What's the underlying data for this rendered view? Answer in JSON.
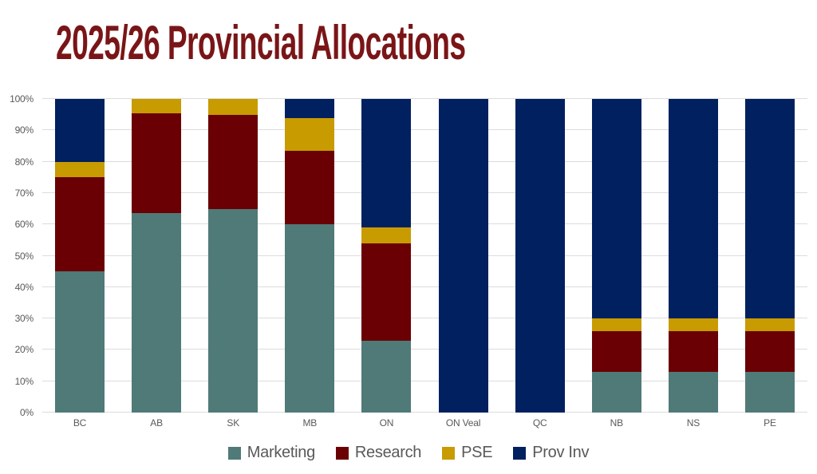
{
  "title": "2025/26 Provincial Allocations",
  "colors": {
    "title": "#7A1517",
    "axis_text": "#595959",
    "gridline": "#DCDCDC",
    "background": "#FFFFFF",
    "marketing": "#4F7A78",
    "research": "#6A0003",
    "pse": "#C89B00",
    "prov_inv": "#002060"
  },
  "chart_data": {
    "type": "bar",
    "stacked": true,
    "title": "2025/26 Provincial Allocations",
    "xlabel": "",
    "ylabel": "",
    "ylim": [
      0,
      100
    ],
    "grid": true,
    "legend_position": "bottom",
    "y_tick_labels": [
      "0%",
      "10%",
      "20%",
      "30%",
      "40%",
      "50%",
      "60%",
      "70%",
      "80%",
      "90%",
      "100%"
    ],
    "categories": [
      "BC",
      "AB",
      "SK",
      "MB",
      "ON",
      "ON Veal",
      "QC",
      "NB",
      "NS",
      "PE"
    ],
    "series": [
      {
        "name": "Marketing",
        "color": "#4F7A78",
        "values": [
          45,
          63.5,
          65,
          60,
          23,
          0,
          0,
          13,
          13,
          13
        ]
      },
      {
        "name": "Research",
        "color": "#6A0003",
        "values": [
          30,
          32,
          30,
          23.5,
          31,
          0,
          0,
          13,
          13,
          13
        ]
      },
      {
        "name": "PSE",
        "color": "#C89B00",
        "values": [
          5,
          4.5,
          5,
          10.5,
          5,
          0,
          0,
          4,
          4,
          4
        ]
      },
      {
        "name": "Prov Inv",
        "color": "#002060",
        "values": [
          20,
          0,
          0,
          6,
          41,
          100,
          100,
          70,
          70,
          70
        ]
      }
    ]
  }
}
